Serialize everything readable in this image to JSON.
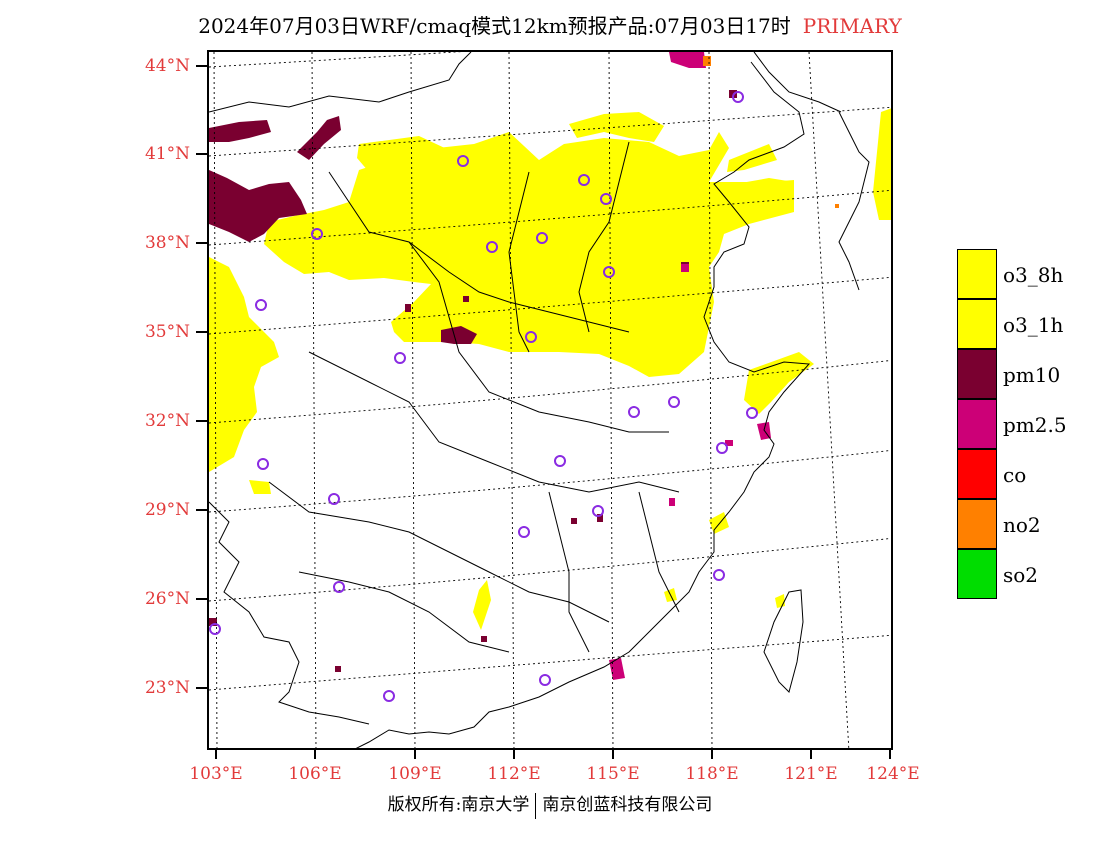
{
  "title": {
    "main": "2024年07月03日WRF/cmaq模式12km预报产品:07月03日17时",
    "tag": "PRIMARY",
    "tag_color": "#e23a3a"
  },
  "axes": {
    "lat_labels": [
      "44°N",
      "41°N",
      "38°N",
      "35°N",
      "32°N",
      "29°N",
      "26°N",
      "23°N"
    ],
    "lon_labels": [
      "103°E",
      "106°E",
      "109°E",
      "112°E",
      "115°E",
      "118°E",
      "121°E",
      "124°E"
    ],
    "label_color": "#e23a3a"
  },
  "legend": {
    "items": [
      {
        "label": "o3_8h",
        "color": "#ffff00"
      },
      {
        "label": "o3_1h",
        "color": "#ffff00"
      },
      {
        "label": "pm10",
        "color": "#7a0030"
      },
      {
        "label": "pm2.5",
        "color": "#cc0077"
      },
      {
        "label": "co",
        "color": "#ff0000"
      },
      {
        "label": "no2",
        "color": "#ff8000"
      },
      {
        "label": "so2",
        "color": "#00dd00"
      }
    ]
  },
  "station_marker_color": "#8a2be2",
  "footer": {
    "left": "版权所有:南京大学",
    "right": "南京创蓝科技有限公司"
  }
}
